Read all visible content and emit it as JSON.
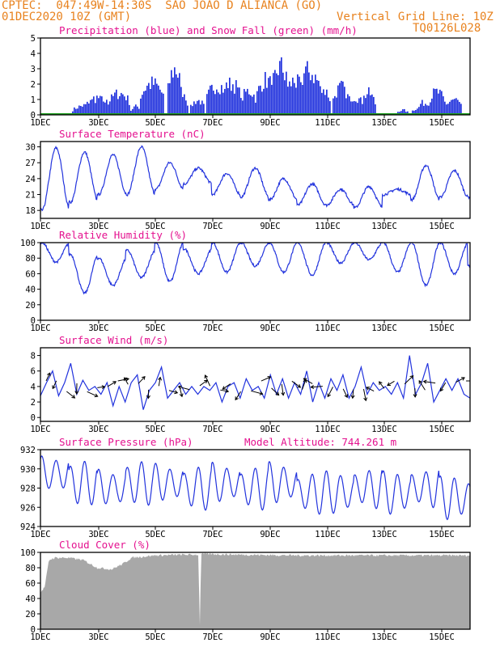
{
  "header": {
    "line1_left": "CPTEC:  047:49W-14:30S  SAO JOAO D ALIANCA (GO)",
    "line2_left": "01DEC2020 10Z (GMT)",
    "line2_right": "Vertical Grid Line: 10Z",
    "line3_right": "TQ0126L028"
  },
  "colors": {
    "title": "#e4118f",
    "header": "#e8821e",
    "series": "#2233dd",
    "snow": "#1fa01f",
    "cloud": "#a8a8a8"
  },
  "chart_data": [
    {
      "id": "precip",
      "type": "bar",
      "title": "Precipitation (blue) and Snow Fall (green) (mm/h)",
      "ylim": [
        0,
        5
      ],
      "yticks": [
        "0",
        "1",
        "2",
        "3",
        "4",
        "5"
      ],
      "xticks": [
        "1DEC",
        "3DEC",
        "5DEC",
        "7DEC",
        "9DEC",
        "11DEC",
        "13DEC",
        "15DEC"
      ],
      "x_start_day": 1.0,
      "x_end_day": 16.1,
      "series": [
        {
          "name": "Precipitation",
          "bursts": [
            [
              2.6,
              0.5,
              0.8
            ],
            [
              3.0,
              0.5,
              1.3
            ],
            [
              3.75,
              0.4,
              1.8
            ],
            [
              4.35,
              0.2,
              0.7
            ],
            [
              4.9,
              0.45,
              2.6
            ],
            [
              5.7,
              0.25,
              3.8
            ],
            [
              5.95,
              0.2,
              2.0
            ],
            [
              6.5,
              0.25,
              1.2
            ],
            [
              7.2,
              0.4,
              2.5
            ],
            [
              7.7,
              0.35,
              2.6
            ],
            [
              8.3,
              0.3,
              2.0
            ],
            [
              8.9,
              0.35,
              2.9
            ],
            [
              9.4,
              0.3,
              4.0
            ],
            [
              9.9,
              0.35,
              2.8
            ],
            [
              10.4,
              0.45,
              3.6
            ],
            [
              10.9,
              0.3,
              2.1
            ],
            [
              11.55,
              0.3,
              2.3
            ],
            [
              12.0,
              0.35,
              1.5
            ],
            [
              12.5,
              0.25,
              1.8
            ],
            [
              13.7,
              0.2,
              0.4
            ],
            [
              14.2,
              0.2,
              0.5
            ],
            [
              14.45,
              0.25,
              1.0
            ],
            [
              14.9,
              0.3,
              1.9
            ],
            [
              15.5,
              0.3,
              1.3
            ]
          ]
        },
        {
          "name": "Snow Fall",
          "values": [
            0
          ]
        }
      ]
    },
    {
      "id": "temp",
      "type": "line",
      "title": "Surface Temperature (nC)",
      "ylim": [
        16.5,
        31
      ],
      "yticks": [
        "18",
        "21",
        "24",
        "27",
        "30"
      ],
      "ytick_values": [
        18,
        21,
        24,
        27,
        30
      ],
      "xticks": [
        "1DEC",
        "3DEC",
        "5DEC",
        "7DEC",
        "9DEC",
        "11DEC",
        "13DEC",
        "15DEC"
      ],
      "x_start_day": 1.0,
      "x_end_day": 16.1,
      "daily_min": [
        18.0,
        19.5,
        21.0,
        21.0,
        22.0,
        23.0,
        21.0,
        20.5,
        20.0,
        19.0,
        19.0,
        18.5,
        21.0,
        20.0,
        20.5,
        20.5
      ],
      "daily_max": [
        29.8,
        29.0,
        28.5,
        30.0,
        27.0,
        26.0,
        25.0,
        26.0,
        24.0,
        23.0,
        22.0,
        22.5,
        22.0,
        26.5,
        25.5,
        27.0
      ]
    },
    {
      "id": "rh",
      "type": "line",
      "title": "Relative Humidity (%)",
      "ylim": [
        0,
        100
      ],
      "yticks": [
        "0",
        "20",
        "40",
        "60",
        "80",
        "100"
      ],
      "ytick_values": [
        0,
        20,
        40,
        60,
        80,
        100
      ],
      "xticks": [
        "1DEC",
        "3DEC",
        "5DEC",
        "7DEC",
        "9DEC",
        "11DEC",
        "13DEC",
        "15DEC"
      ],
      "x_start_day": 1.0,
      "x_end_day": 16.1,
      "daily_min": [
        75,
        35,
        45,
        55,
        50,
        60,
        62,
        70,
        62,
        58,
        74,
        78,
        62,
        45,
        60,
        42
      ],
      "daily_max": [
        100,
        85,
        80,
        90,
        100,
        92,
        100,
        100,
        100,
        100,
        100,
        100,
        100,
        100,
        100,
        70
      ]
    },
    {
      "id": "wind",
      "type": "line",
      "title": "Surface Wind (m/s)",
      "ylim": [
        -0.5,
        9
      ],
      "yticks": [
        "0",
        "2",
        "4",
        "6",
        "8"
      ],
      "ytick_values": [
        0,
        2,
        4,
        6,
        8
      ],
      "xticks": [
        "1DEC",
        "3DEC",
        "5DEC",
        "7DEC",
        "9DEC",
        "11DEC",
        "13DEC",
        "15DEC"
      ],
      "x_start_day": 1.0,
      "x_end_day": 16.1,
      "speed": [
        2.8,
        4.5,
        6.0,
        2.8,
        4.5,
        7.0,
        3.0,
        4.8,
        3.5,
        4.0,
        3.0,
        4.5,
        1.5,
        4.0,
        2.0,
        4.5,
        5.5,
        1.0,
        3.5,
        4.5,
        6.5,
        2.5,
        3.5,
        4.5,
        3.0,
        4.0,
        3.0,
        4.0,
        3.5,
        4.5,
        2.0,
        4.0,
        4.5,
        2.5,
        5.0,
        3.5,
        4.0,
        2.5,
        5.5,
        3.0,
        5.0,
        2.5,
        4.5,
        3.0,
        6.0,
        2.0,
        4.5,
        2.5,
        5.0,
        3.5,
        5.5,
        2.5,
        4.0,
        6.5,
        3.0,
        4.5,
        3.5,
        4.0,
        3.0,
        4.5,
        2.5,
        8.0,
        3.0,
        4.5,
        7.0,
        2.0,
        3.5,
        5.0,
        3.5,
        5.0,
        3.0,
        2.5
      ]
    },
    {
      "id": "pres",
      "type": "line",
      "title": "Surface Pressure (hPa)",
      "annotation": "Model Altitude: 744.261 m",
      "ylim": [
        924,
        932
      ],
      "yticks": [
        "924",
        "926",
        "928",
        "930",
        "932"
      ],
      "ytick_values": [
        924,
        926,
        928,
        930,
        932
      ],
      "xticks": [
        "1DEC",
        "3DEC",
        "5DEC",
        "7DEC",
        "9DEC",
        "11DEC",
        "13DEC",
        "15DEC"
      ],
      "x_start_day": 1.0,
      "x_end_day": 16.1,
      "semi_diurnal_amp": 2.3,
      "daily_mean": [
        929.5,
        928.5,
        928.0,
        928.5,
        928.5,
        928.0,
        928.5,
        928.0,
        928.5,
        927.5,
        927.5,
        928.0,
        927.5,
        928.0,
        927.0,
        927.0
      ]
    },
    {
      "id": "cloud",
      "type": "area",
      "title": "Cloud Cover (%)",
      "ylim": [
        0,
        100
      ],
      "yticks": [
        "0",
        "20",
        "40",
        "60",
        "80",
        "100"
      ],
      "ytick_values": [
        0,
        20,
        40,
        60,
        80,
        100
      ],
      "xticks": [
        "1DEC",
        "3DEC",
        "5DEC",
        "7DEC",
        "9DEC",
        "11DEC",
        "13DEC",
        "15DEC"
      ],
      "x_start_day": 1.0,
      "x_end_day": 16.1,
      "profile": [
        [
          1.0,
          48
        ],
        [
          1.15,
          55
        ],
        [
          1.3,
          90
        ],
        [
          1.5,
          93
        ],
        [
          2.0,
          93
        ],
        [
          2.5,
          90
        ],
        [
          3.0,
          80
        ],
        [
          3.5,
          78
        ],
        [
          3.9,
          85
        ],
        [
          4.2,
          93
        ],
        [
          5.0,
          96
        ],
        [
          6.0,
          97
        ],
        [
          6.55,
          97
        ],
        [
          6.6,
          2
        ],
        [
          6.65,
          98
        ],
        [
          8.0,
          97
        ],
        [
          10.0,
          96
        ],
        [
          12.0,
          96
        ],
        [
          14.0,
          96
        ],
        [
          16.1,
          96
        ]
      ]
    }
  ]
}
